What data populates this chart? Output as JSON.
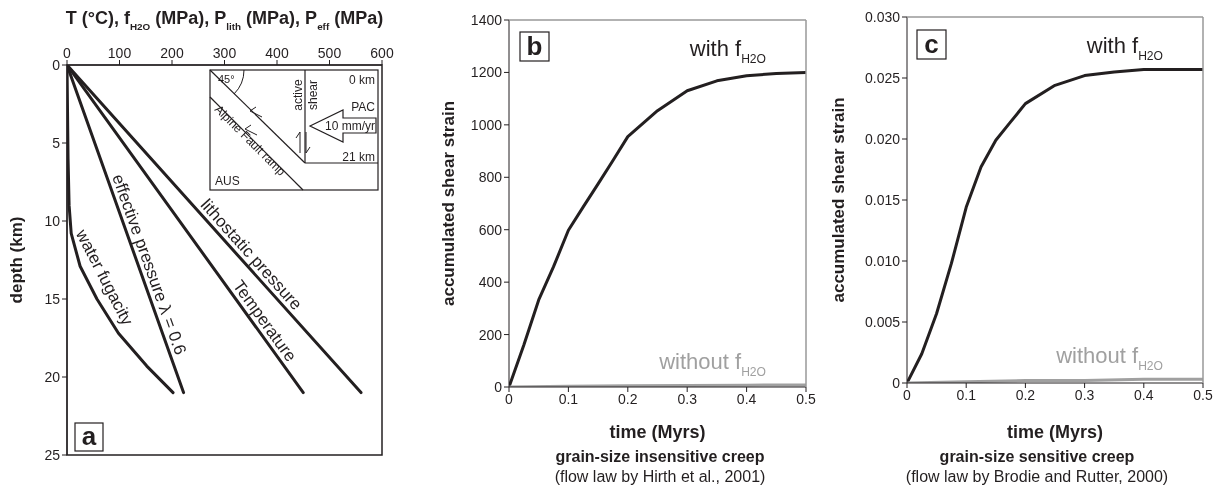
{
  "chart_data": [
    {
      "type": "line",
      "xlabel": "T (°C), f$_{H2O}$ (MPa), P$_{lith}$ (MPa), P$_{eff}$ (MPa)",
      "ylabel": "depth (km)",
      "xlim": [
        0,
        600
      ],
      "xticks": [
        0,
        100,
        200,
        300,
        400,
        500,
        600
      ],
      "ylim": [
        25,
        0
      ],
      "yticks": [
        0,
        5,
        10,
        15,
        20,
        25
      ],
      "annotations": [
        "a",
        "45°",
        "active",
        "shear",
        "0 km",
        "PAC",
        "10 mm/yr",
        "21 km",
        "Alpine Fault ramp",
        "AUS"
      ],
      "series": [
        {
          "name": "water fugacity",
          "color": "#231f20",
          "x": [
            0,
            1,
            2,
            4,
            8,
            25,
            57,
            98,
            152,
            202
          ],
          "values": [
            0,
            3,
            6,
            9,
            10.8,
            12.9,
            15,
            17.2,
            19.3,
            21
          ]
        },
        {
          "name": "effective pressure λ = 0.6",
          "color": "#231f20",
          "x": [
            0,
            222
          ],
          "values": [
            0,
            21
          ]
        },
        {
          "name": "Temperature",
          "color": "#231f20",
          "x": [
            0,
            450
          ],
          "values": [
            0,
            21
          ]
        },
        {
          "name": "lithostatic pressure",
          "color": "#231f20",
          "x": [
            0,
            560
          ],
          "values": [
            0,
            21
          ]
        }
      ]
    },
    {
      "type": "line",
      "xlabel": "time (Myrs)",
      "ylabel": "accumulated shear strain",
      "xlim": [
        0,
        0.5
      ],
      "xticks": [
        0,
        0.1,
        0.2,
        0.3,
        0.4,
        0.5
      ],
      "ylim": [
        0,
        1400
      ],
      "yticks": [
        0,
        200,
        400,
        600,
        800,
        1000,
        1200,
        1400
      ],
      "annotations": [
        "b",
        "grain-size insensitive creep",
        "(flow law by Hirth et al., 2001)"
      ],
      "series": [
        {
          "name": "with f$_{H2O}$",
          "color": "#231f20",
          "x": [
            0,
            0.025,
            0.05,
            0.075,
            0.1,
            0.125,
            0.15,
            0.175,
            0.2,
            0.25,
            0.3,
            0.35,
            0.4,
            0.45,
            0.5
          ],
          "values": [
            0,
            160,
            332,
            459,
            598,
            687,
            775,
            864,
            955,
            1054,
            1130,
            1168,
            1187,
            1196,
            1200
          ]
        },
        {
          "name": "without f$_{H2O}$",
          "color": "#a0a0a0",
          "x": [
            0,
            0.1,
            0.2,
            0.3,
            0.4,
            0.5
          ],
          "values": [
            0,
            3,
            5,
            6,
            7,
            8
          ]
        }
      ]
    },
    {
      "type": "line",
      "xlabel": "time (Myrs)",
      "ylabel": "accumulated shear strain",
      "xlim": [
        0,
        0.5
      ],
      "xticks": [
        0,
        0.1,
        0.2,
        0.3,
        0.4,
        0.5
      ],
      "ylim": [
        0,
        0.03
      ],
      "yticks": [
        0,
        0.005,
        {
          "value": 0.01,
          "label": "0.010"
        },
        0.015,
        {
          "value": 0.02,
          "label": "0.020"
        },
        0.025,
        {
          "value": 0.03,
          "label": "0.030"
        }
      ],
      "annotations": [
        "c",
        "grain-size sensitive creep",
        "(flow law by Brodie and Rutter, 2000)"
      ],
      "series": [
        {
          "name": "with f$_{H2O}$",
          "color": "#231f20",
          "x": [
            0,
            0.025,
            0.05,
            0.075,
            0.1,
            0.125,
            0.15,
            0.175,
            0.2,
            0.25,
            0.3,
            0.35,
            0.4,
            0.5
          ],
          "values": [
            0,
            0.0024,
            0.0057,
            0.0098,
            0.0144,
            0.0177,
            0.0199,
            0.0214,
            0.0229,
            0.0244,
            0.0252,
            0.0255,
            0.0257,
            0.0257
          ]
        },
        {
          "name": "without f$_{H2O}$",
          "color": "#a0a0a0",
          "x": [
            0,
            0.1,
            0.2,
            0.3,
            0.4,
            0.5
          ],
          "values": [
            0,
            0.0001,
            0.0002,
            0.0002,
            0.0003,
            0.0003
          ]
        }
      ]
    }
  ]
}
